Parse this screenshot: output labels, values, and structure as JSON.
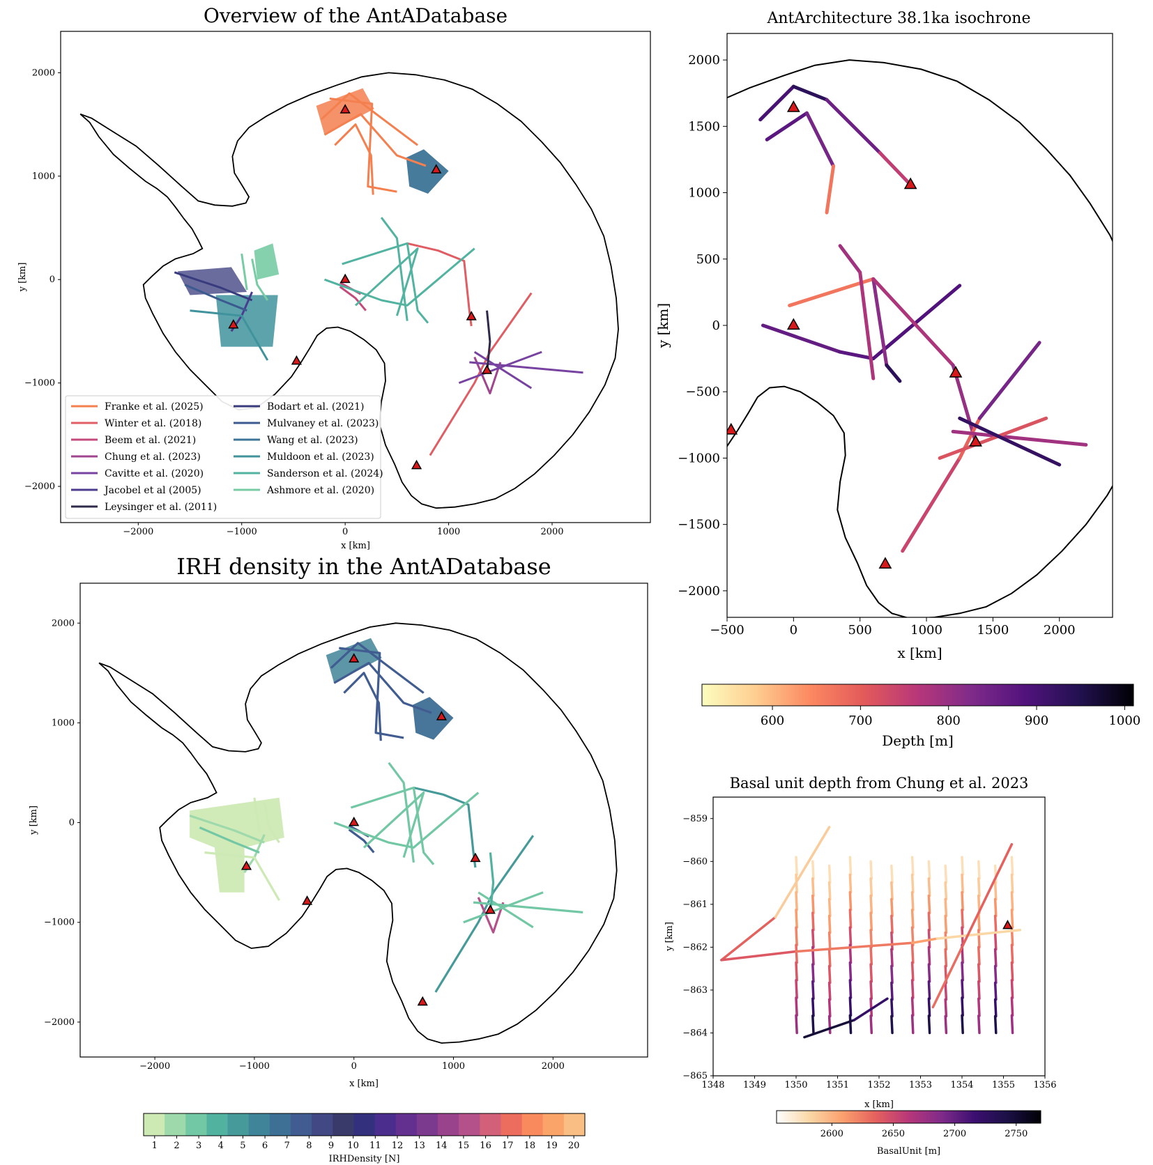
{
  "colors": {
    "depth_cmap": [
      "#fcfdbf",
      "#fecd90",
      "#fc8961",
      "#e35a5a",
      "#b73779",
      "#7f2b8a",
      "#51127c",
      "#221150",
      "#000004"
    ],
    "basal_cmap": [
      "#ffffff",
      "#fbd7a6",
      "#fba06e",
      "#e5615e",
      "#b73779",
      "#7f2b8a",
      "#3b0f70",
      "#1b1045",
      "#000004"
    ],
    "density_colors": [
      "#cde9b4",
      "#9ed9ac",
      "#72c7a4",
      "#52b2a0",
      "#469a9a",
      "#3f8498",
      "#3e6f95",
      "#415c90",
      "#414883",
      "#3a3a6a",
      "#33307e",
      "#4a2d8c",
      "#64308f",
      "#7c3a8e",
      "#98438c",
      "#b4508a",
      "#d16078",
      "#ec6c5e",
      "#f98a5d",
      "#faa46a",
      "#f8be83"
    ],
    "markers": "#d7191c"
  },
  "chart_data": [
    {
      "id": "overview",
      "type": "line",
      "title": "Overview of the AntADatabase",
      "xlabel": "x [km]",
      "ylabel": "y [km]",
      "xlim": [
        -2750,
        2950
      ],
      "ylim": [
        -2350,
        2400
      ],
      "xticks": [
        -2000,
        -1000,
        0,
        1000,
        2000
      ],
      "yticks": [
        -2000,
        -1000,
        0,
        1000,
        2000
      ],
      "xtick_labels": [
        "−2000",
        "−1000",
        "0",
        "1000",
        "2000"
      ],
      "ytick_labels": [
        "−2000",
        "−1000",
        "0",
        "1000",
        "2000"
      ],
      "legend_position": "lower-left",
      "series": [
        {
          "name": "Franke et al. (2025)",
          "color": "#f47f4f"
        },
        {
          "name": "Winter et al. (2018)",
          "color": "#e05d64"
        },
        {
          "name": "Beem et al. (2021)",
          "color": "#c44a7c"
        },
        {
          "name": "Chung et al. (2023)",
          "color": "#a0458f"
        },
        {
          "name": "Cavitte et al. (2020)",
          "color": "#7843a0"
        },
        {
          "name": "Jacobel et al (2005)",
          "color": "#4c3b8f"
        },
        {
          "name": "Leysinger et al. (2011)",
          "color": "#2e2a4a"
        },
        {
          "name": "Bodart et al. (2021)",
          "color": "#383b7e"
        },
        {
          "name": "Mulvaney et al. (2023)",
          "color": "#3b5a8f"
        },
        {
          "name": "Wang et al. (2023)",
          "color": "#3d7497"
        },
        {
          "name": "Muldoon et al. (2023)",
          "color": "#40939d"
        },
        {
          "name": "Sanderson et al. (2024)",
          "color": "#52b3a1"
        },
        {
          "name": "Ashmore et al. (2020)",
          "color": "#78cca4"
        }
      ]
    },
    {
      "id": "density",
      "type": "line",
      "title": "IRH density in the AntADatabase",
      "xlabel": "x [km]",
      "ylabel": "y [km]",
      "xlim": [
        -2750,
        2950
      ],
      "ylim": [
        -2350,
        2400
      ],
      "xticks": [
        -2000,
        -1000,
        0,
        1000,
        2000
      ],
      "yticks": [
        -2000,
        -1000,
        0,
        1000,
        2000
      ],
      "xtick_labels": [
        "−2000",
        "−1000",
        "0",
        "1000",
        "2000"
      ],
      "ytick_labels": [
        "−2000",
        "−1000",
        "0",
        "1000",
        "2000"
      ],
      "colorbar": {
        "label": "IRHDensity [N]",
        "ticks": [
          "1",
          "2",
          "3",
          "4",
          "5",
          "6",
          "7",
          "8",
          "9",
          "10",
          "11",
          "12",
          "13",
          "14",
          "15",
          "16",
          "17",
          "18",
          "19",
          "20"
        ]
      }
    },
    {
      "id": "isochrone",
      "type": "scatter",
      "title": "AntArchitecture 38.1ka isochrone",
      "xlabel": "x [km]",
      "ylabel": "y [km]",
      "xlim": [
        -500,
        2400
      ],
      "ylim": [
        -2200,
        2200
      ],
      "xticks": [
        -500,
        0,
        500,
        1000,
        1500,
        2000
      ],
      "yticks": [
        -2000,
        -1500,
        -1000,
        -500,
        0,
        500,
        1000,
        1500,
        2000
      ],
      "xtick_labels": [
        "−500",
        "0",
        "500",
        "1000",
        "1500",
        "2000"
      ],
      "ytick_labels": [
        "−2000",
        "−1500",
        "−1000",
        "−500",
        "0",
        "500",
        "1000",
        "1500",
        "2000"
      ],
      "colorbar": {
        "label": "Depth [m]",
        "range": [
          520,
          1010
        ],
        "ticks": [
          "600",
          "700",
          "800",
          "900",
          "1000"
        ],
        "tick_values": [
          600,
          700,
          800,
          900,
          1000
        ]
      }
    },
    {
      "id": "basal",
      "type": "scatter",
      "title": "Basal unit depth from Chung et al. 2023",
      "xlabel": "x [km]",
      "ylabel": "y [km]",
      "xlim": [
        1348,
        1356
      ],
      "ylim": [
        -865,
        -858.5
      ],
      "xticks": [
        1348,
        1349,
        1350,
        1351,
        1352,
        1353,
        1354,
        1355,
        1356
      ],
      "yticks": [
        -865,
        -864,
        -863,
        -862,
        -861,
        -860,
        -859
      ],
      "xtick_labels": [
        "1348",
        "1349",
        "1350",
        "1351",
        "1352",
        "1353",
        "1354",
        "1355",
        "1356"
      ],
      "ytick_labels": [
        "−865",
        "−864",
        "−863",
        "−862",
        "−861",
        "−860",
        "−859"
      ],
      "colorbar": {
        "label": "BasalUnit [m]",
        "range": [
          2555,
          2770
        ],
        "ticks": [
          "2600",
          "2650",
          "2700",
          "2750"
        ],
        "tick_values": [
          2600,
          2650,
          2700,
          2750
        ]
      }
    }
  ]
}
